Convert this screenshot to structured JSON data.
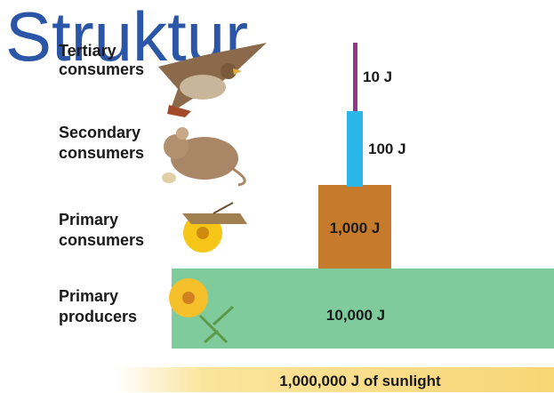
{
  "title": "Struktur",
  "levels": [
    {
      "label": [
        "Tertiary",
        "consumers"
      ],
      "energy": "10 J"
    },
    {
      "label": [
        "Secondary",
        "consumers"
      ],
      "energy": "100 J"
    },
    {
      "label": [
        "Primary",
        "consumers"
      ],
      "energy": "1,000 J"
    },
    {
      "label": [
        "Primary",
        "producers"
      ],
      "energy": "10,000 J"
    }
  ],
  "source": "1,000,000 J of sunlight"
}
